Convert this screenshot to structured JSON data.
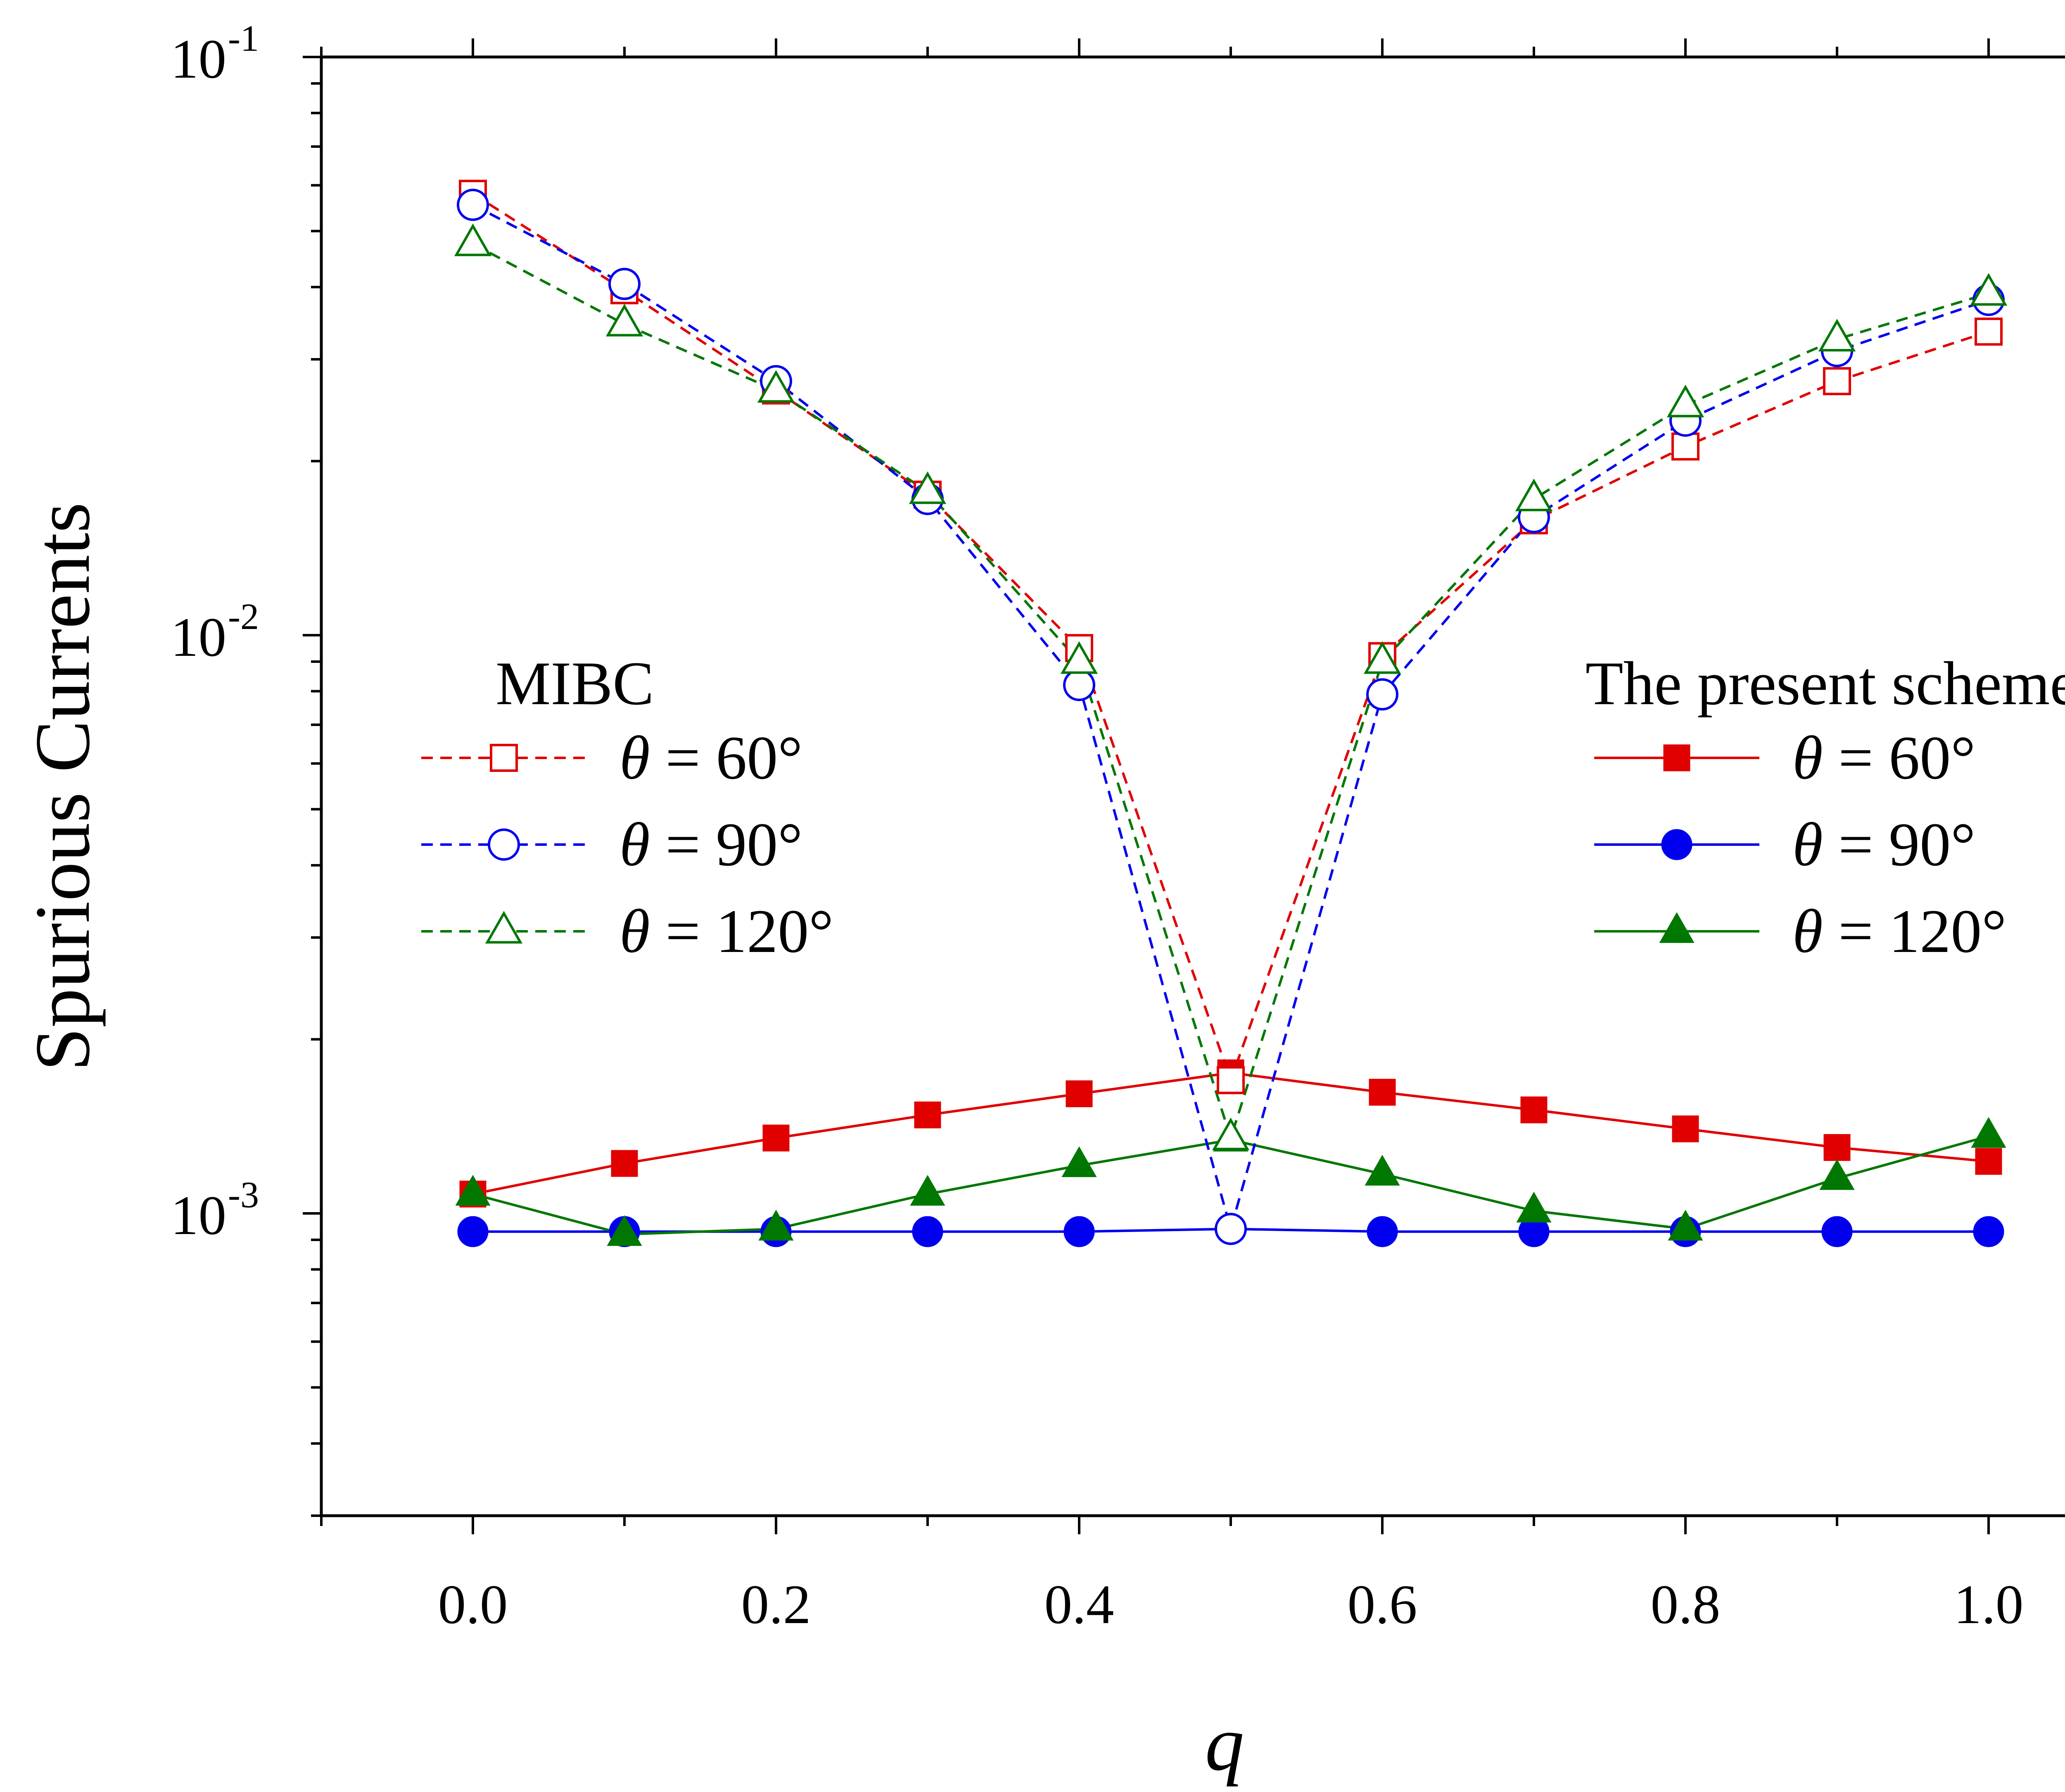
{
  "chart_data": {
    "type": "line",
    "title": "",
    "xlabel": "q",
    "ylabel": "Spurious  Currents",
    "yscale": "log",
    "xlim": [
      -0.1,
      1.1
    ],
    "ylim": [
      0.0003,
      0.1
    ],
    "x": [
      0.0,
      0.1,
      0.2,
      0.3,
      0.4,
      0.5,
      0.6,
      0.7,
      0.8,
      0.9,
      1.0
    ],
    "x_ticks": [
      "0.0",
      "0.2",
      "0.4",
      "0.6",
      "0.8",
      "1.0"
    ],
    "y_ticks": [
      {
        "base": "10",
        "exp": "-1"
      },
      {
        "base": "10",
        "exp": "-2"
      },
      {
        "base": "10",
        "exp": "-3"
      }
    ],
    "legend_groups": [
      {
        "title": "MIBC",
        "position": "left"
      },
      {
        "title": "The present scheme",
        "position": "right"
      }
    ],
    "theta_symbol": "θ",
    "series": [
      {
        "name": "θ = 60°",
        "group": "MIBC",
        "label_rest": " = 60°",
        "color": "#e00000",
        "marker": "square",
        "filled": false,
        "dashed": true,
        "values": [
          0.058,
          0.0395,
          0.0265,
          0.0175,
          0.0095,
          0.0017,
          0.0092,
          0.0158,
          0.0212,
          0.0275,
          0.0335
        ]
      },
      {
        "name": "θ = 90°",
        "group": "MIBC",
        "label_rest": " = 90°",
        "color": "#0000ee",
        "marker": "circle",
        "filled": false,
        "dashed": true,
        "values": [
          0.0555,
          0.0405,
          0.0275,
          0.0172,
          0.0082,
          0.00094,
          0.0079,
          0.016,
          0.0235,
          0.031,
          0.038
        ]
      },
      {
        "name": "θ = 120°",
        "group": "MIBC",
        "label_rest": " = 120°",
        "color": "#007700",
        "marker": "triangle",
        "filled": false,
        "dashed": true,
        "values": [
          0.0475,
          0.0345,
          0.0265,
          0.0177,
          0.009,
          0.00135,
          0.009,
          0.0172,
          0.025,
          0.0325,
          0.039
        ]
      },
      {
        "name": "θ = 60°",
        "group": "The present scheme",
        "label_rest": " = 60°",
        "color": "#e00000",
        "marker": "square",
        "filled": true,
        "dashed": false,
        "values": [
          0.00108,
          0.00122,
          0.00135,
          0.00148,
          0.00161,
          0.00175,
          0.00162,
          0.00151,
          0.0014,
          0.0013,
          0.00123
        ]
      },
      {
        "name": "θ = 90°",
        "group": "The present scheme",
        "label_rest": " = 90°",
        "color": "#0000ee",
        "marker": "circle",
        "filled": true,
        "dashed": false,
        "values": [
          0.00093,
          0.00093,
          0.00093,
          0.00093,
          0.00093,
          0.00094,
          0.00093,
          0.00093,
          0.00093,
          0.00093,
          0.00093
        ]
      },
      {
        "name": "θ = 120°",
        "group": "The present scheme",
        "label_rest": " = 120°",
        "color": "#007700",
        "marker": "triangle",
        "filled": true,
        "dashed": false,
        "values": [
          0.00108,
          0.00092,
          0.00094,
          0.00108,
          0.00121,
          0.00134,
          0.00117,
          0.00101,
          0.00094,
          0.00115,
          0.00136
        ]
      }
    ]
  }
}
